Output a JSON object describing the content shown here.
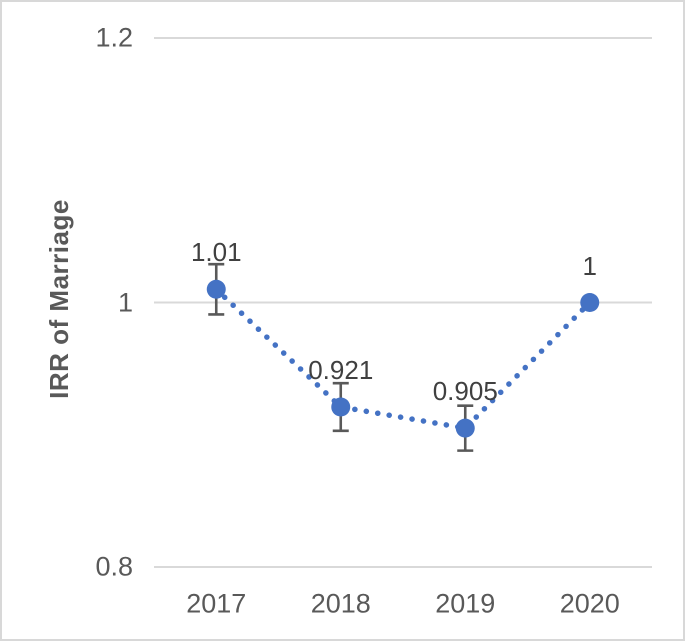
{
  "chart_data": {
    "type": "line",
    "title": "",
    "categories": [
      "2017",
      "2018",
      "2019",
      "2020"
    ],
    "series": [
      {
        "name": "IRR of Marriage",
        "values": [
          1.01,
          0.921,
          0.905,
          1.0
        ],
        "errors": [
          0.019,
          0.018,
          0.017,
          0
        ],
        "point_labels": [
          "1.01",
          "0.921",
          "0.905",
          "1"
        ]
      }
    ],
    "xlabel": "",
    "ylabel": "IRR of Marriage",
    "ylim": [
      0.8,
      1.2
    ],
    "yticks": [
      0.8,
      1.0,
      1.2
    ],
    "ytick_labels": [
      "0.8",
      "1",
      "1.2"
    ],
    "grid": true,
    "legend": "none",
    "line_style": "dotted",
    "marker": "circle",
    "colors": {
      "series": "#4472C4",
      "gridline": "#D9D9D9",
      "tick_text": "#595959",
      "data_label_text": "#404040",
      "error_bar": "#595959",
      "frame_border": "#D8D8D8",
      "background": "#FFFFFF"
    }
  }
}
